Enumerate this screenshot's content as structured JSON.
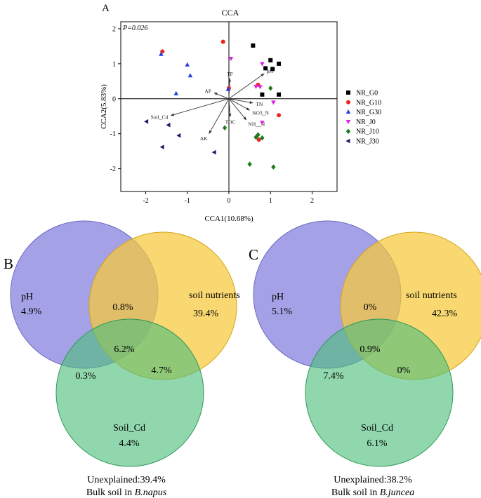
{
  "panels": {
    "a": "A",
    "b": "B",
    "c": "C"
  },
  "chart_data": [
    {
      "type": "scatter",
      "title": "CCA",
      "xlabel": "CCA1(10.68%)",
      "ylabel": "CCA2(5.83%)",
      "annotation": "P=0.026",
      "xlim": [
        -2.6,
        2.6
      ],
      "ylim": [
        -2.65,
        2.2
      ],
      "xticks": [
        -2,
        -1,
        0,
        1,
        2
      ],
      "yticks": [
        -2,
        -1,
        0,
        1,
        2
      ],
      "legend_position": "right",
      "series": [
        {
          "name": "NR_G0",
          "marker": "square",
          "color": "#000000",
          "points": [
            [
              0.58,
              1.52
            ],
            [
              1.0,
              1.1
            ],
            [
              1.2,
              1.0
            ],
            [
              0.88,
              0.87
            ],
            [
              1.05,
              0.85
            ],
            [
              0.8,
              0.12
            ],
            [
              1.2,
              0.12
            ]
          ]
        },
        {
          "name": "NR_G10",
          "marker": "circle",
          "color": "#e8251f",
          "points": [
            [
              -0.14,
              1.63
            ],
            [
              -1.6,
              1.35
            ],
            [
              0.0,
              0.3
            ],
            [
              0.7,
              0.4
            ],
            [
              1.2,
              -0.47
            ],
            [
              0.72,
              -1.17
            ]
          ]
        },
        {
          "name": "NR_G30",
          "marker": "triangle-up",
          "color": "#1f3fe0",
          "points": [
            [
              -1.63,
              1.27
            ],
            [
              -1.0,
              0.97
            ],
            [
              -0.93,
              0.66
            ],
            [
              -1.27,
              0.15
            ],
            [
              -0.02,
              0.27
            ]
          ]
        },
        {
          "name": "NR_J0",
          "marker": "triangle-down",
          "color": "#e01fe0",
          "points": [
            [
              0.05,
              1.15
            ],
            [
              0.8,
              1.0
            ],
            [
              0.65,
              0.35
            ],
            [
              0.75,
              0.34
            ],
            [
              1.07,
              -0.1
            ],
            [
              0.8,
              -0.68
            ]
          ]
        },
        {
          "name": "NR_J10",
          "marker": "diamond",
          "color": "#1a7d1a",
          "points": [
            [
              1.0,
              0.3
            ],
            [
              -0.1,
              -0.83
            ],
            [
              0.7,
              -1.03
            ],
            [
              0.65,
              -1.1
            ],
            [
              0.8,
              -1.12
            ],
            [
              0.5,
              -1.87
            ],
            [
              1.07,
              -1.95
            ]
          ]
        },
        {
          "name": "NR_J30",
          "marker": "triangle-left",
          "color": "#1a1a6b",
          "points": [
            [
              -1.98,
              -0.65
            ],
            [
              -1.45,
              -0.75
            ],
            [
              -1.2,
              -1.05
            ],
            [
              -1.6,
              -1.38
            ],
            [
              -0.35,
              -1.53
            ]
          ]
        }
      ],
      "vectors": [
        {
          "label": "TP",
          "x": 0.02,
          "y": 0.58
        },
        {
          "label": "pH",
          "x": 0.85,
          "y": 0.72
        },
        {
          "label": "AP",
          "x": -0.36,
          "y": 0.17
        },
        {
          "label": "Soil_Cd",
          "x": -1.4,
          "y": -0.48
        },
        {
          "label": "AK",
          "x": -0.48,
          "y": -1.0
        },
        {
          "label": "TOC",
          "x": 0.03,
          "y": -0.52
        },
        {
          "label": "TN",
          "x": 0.58,
          "y": -0.12
        },
        {
          "label": "NO3_N",
          "x": 0.5,
          "y": -0.33
        },
        {
          "label": "NH__N",
          "x": 0.42,
          "y": -0.61
        }
      ]
    },
    {
      "type": "venn",
      "sets": [
        {
          "name": "pH",
          "only": "4.9%",
          "color": "#8a86df"
        },
        {
          "name": "soil nutrients",
          "only": "39.4%",
          "color": "#f7c93a"
        },
        {
          "name": "Soil_Cd",
          "only": "4.4%",
          "color": "#4dbf7a"
        }
      ],
      "overlaps": {
        "pH_nutrients": "0.8%",
        "pH_cd": "0.3%",
        "nutrients_cd": "4.7%",
        "all": "6.2%"
      },
      "unexplained": "Unexplained:39.4%",
      "caption_prefix": "Bulk soil in ",
      "caption_species": "B.napus"
    },
    {
      "type": "venn",
      "sets": [
        {
          "name": "pH",
          "only": "5.1%",
          "color": "#8a86df"
        },
        {
          "name": "soil nutrients",
          "only": "42.3%",
          "color": "#f7c93a"
        },
        {
          "name": "Soil_Cd",
          "only": "6.1%",
          "color": "#4dbf7a"
        }
      ],
      "overlaps": {
        "pH_nutrients": "0%",
        "pH_cd": "7.4%",
        "nutrients_cd": "0%",
        "all": "0.9%"
      },
      "unexplained": "Unexplained:38.2%",
      "caption_prefix": "Bulk soil in ",
      "caption_species": "B.juncea"
    }
  ]
}
